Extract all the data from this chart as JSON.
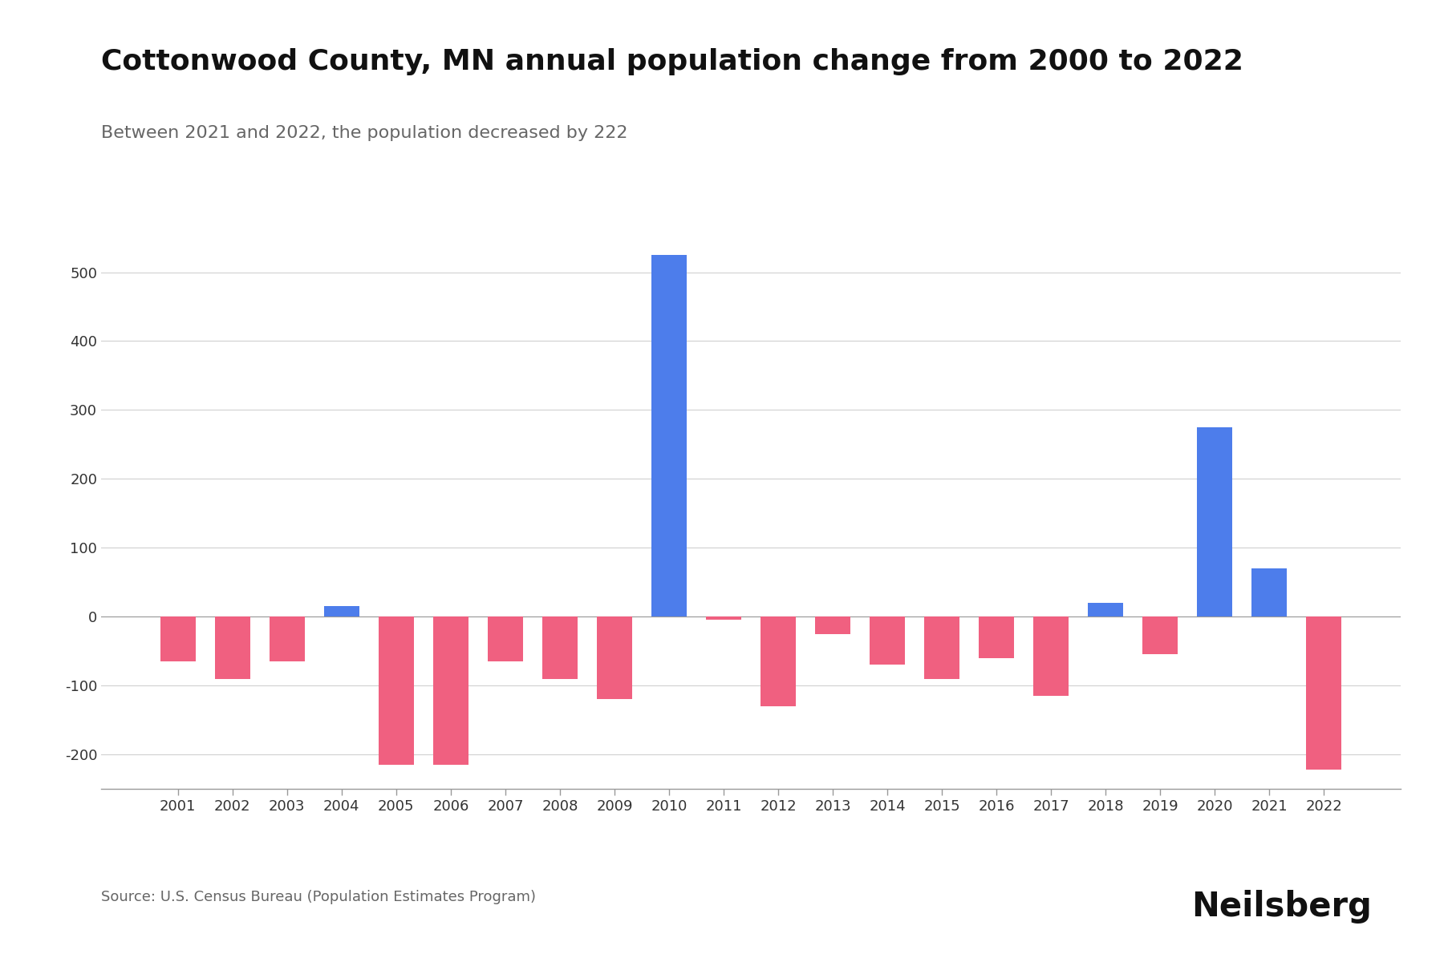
{
  "title": "Cottonwood County, MN annual population change from 2000 to 2022",
  "subtitle": "Between 2021 and 2022, the population decreased by 222",
  "source": "Source: U.S. Census Bureau (Population Estimates Program)",
  "watermark": "Neilsberg",
  "years": [
    2001,
    2002,
    2003,
    2004,
    2005,
    2006,
    2007,
    2008,
    2009,
    2010,
    2011,
    2012,
    2013,
    2014,
    2015,
    2016,
    2017,
    2018,
    2019,
    2020,
    2021,
    2022
  ],
  "values": [
    -65,
    -90,
    -65,
    15,
    -215,
    -215,
    -65,
    -90,
    -120,
    525,
    -5,
    -130,
    -25,
    -70,
    -90,
    -60,
    -115,
    20,
    -55,
    275,
    70,
    -222
  ],
  "background_color": "#ffffff",
  "positive_color": "#4d7deb",
  "negative_color": "#f06080",
  "title_fontsize": 26,
  "subtitle_fontsize": 16,
  "source_fontsize": 13,
  "watermark_fontsize": 30,
  "ylim": [
    -250,
    560
  ],
  "yticks": [
    -200,
    -100,
    0,
    100,
    200,
    300,
    400,
    500
  ]
}
